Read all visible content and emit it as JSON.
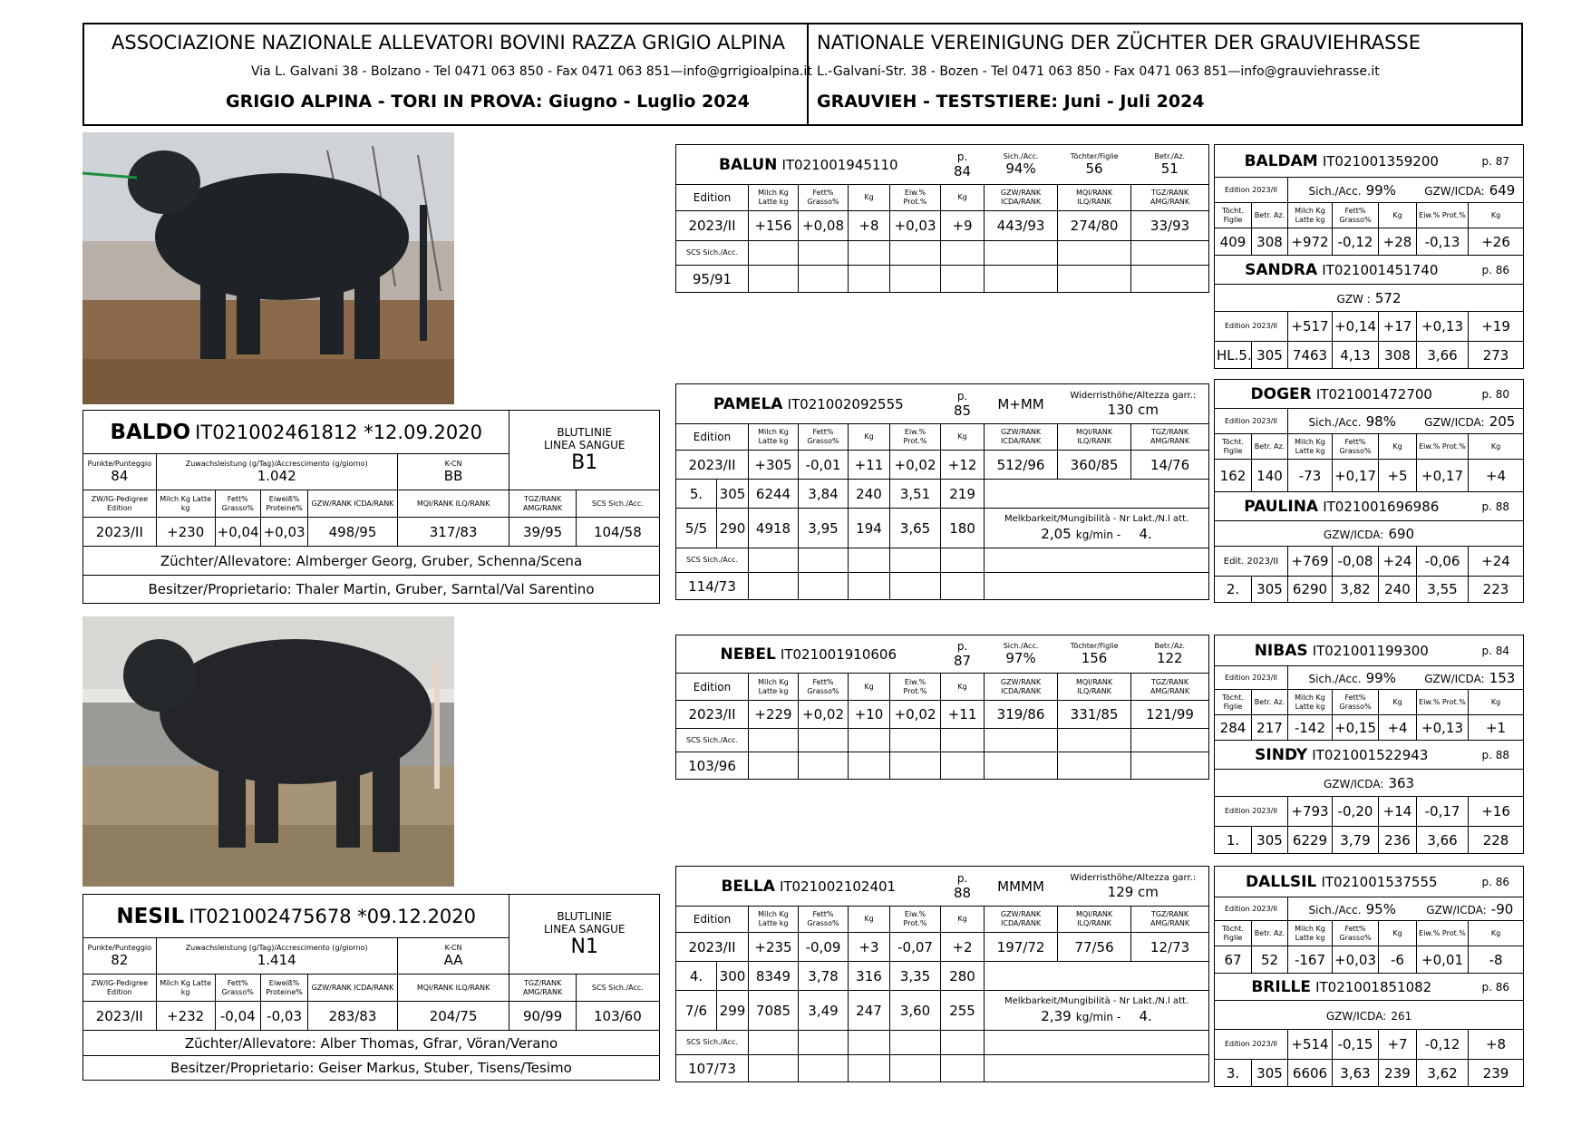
{
  "header": {
    "it_title": "ASSOCIAZIONE NAZIONALE ALLEVATORI BOVINI RAZZA GRIGIO ALPINA",
    "it_address": "Via L. Galvani 38 - Bolzano - Tel 0471 063 850 - Fax  0471 063 851—info@grrigioalpina.it",
    "it_subtitle": "GRIGIO ALPINA - TORI IN PROVA: Giugno - Luglio 2024",
    "de_title": "NATIONALE VEREINIGUNG DER ZÜCHTER DER GRAUVIEHRASSE",
    "de_address": "L.-Galvani-Str. 38 - Bozen - Tel 0471 063 850 - Fax  0471 063 851—info@grauviehrasse.it",
    "de_subtitle": "GRAUVIEH - TESTSTIERE:  Juni - Juli 2024"
  },
  "labels": {
    "bloodline": "BLUTLINIE\nLINEA SANGUE",
    "points": "Punkte/Punteggio",
    "growth": "Zuwachsleistung (g/Tag)/Accrescimento (g/giorno)",
    "kcn": "K-CN",
    "zw": "ZW/IG-Pedigree Edition",
    "milk": "Milch Kg Latte kg",
    "fat": "Fett% Grasso%",
    "protein": "Eiweiß% Proteine%",
    "prot_short": "Eiw.% Prot.%",
    "kg": "Kg",
    "gzw": "GZW/RANK ICDA/RANK",
    "mqi": "MQI/RANK ILQ/RANK",
    "tgz": "TGZ/RANK AMG/RANK",
    "scs": "SCS Sich./Acc.",
    "edition": "Edition",
    "p": "p.",
    "acc": "Sich./Acc.",
    "daughters": "Töchter/Figlie",
    "herds": "Betr./Az.",
    "toecht": "Töcht. Figlie",
    "betr": "Betr. Az.",
    "height": "Widerristhöhe/Altezza garr.:",
    "milkability": "Melkbarkeit/Mungibilità - Nr Lakt./N.l att."
  },
  "bulls": [
    {
      "name": "BALDO",
      "id": "IT021002461812 *12.09.2020",
      "points": "84",
      "growth": "1.042",
      "kcn": "BB",
      "bloodline": "B1",
      "edition": "2023/II",
      "milk": "+230",
      "fat": "+0,04",
      "protein": "+0,03",
      "gzw": "498/95",
      "mqi": "317/83",
      "tgz": "39/95",
      "scs": "104/58",
      "breeder": "Züchter/Allevatore: Almberger Georg, Gruber, Schenna/Scena",
      "owner": "Besitzer/Proprietario: Thaler Martin, Gruber, Sarntal/Val Sarentino"
    },
    {
      "name": "NESIL",
      "id": "IT021002475678 *09.12.2020",
      "points": "82",
      "growth": "1.414",
      "kcn": "AA",
      "bloodline": "N1",
      "edition": "2023/II",
      "milk": "+232",
      "fat": "-0,04",
      "protein": "-0,03",
      "gzw": "283/83",
      "mqi": "204/75",
      "tgz": "90/99",
      "scs": "103/60",
      "breeder": "Züchter/Allevatore: Alber Thomas, Gfrar, Vöran/Verano",
      "owner": "Besitzer/Proprietario:  Geiser Markus, Stuber, Tisens/Tesimo"
    }
  ],
  "sires": [
    {
      "name": "BALUN",
      "id": "IT021001945110",
      "p": "84",
      "acc": "94%",
      "daughters": "56",
      "herds": "51",
      "edition": "2023/II",
      "milk": "+156",
      "fat": "+0,08",
      "fatkg": "+8",
      "prot": "+0,03",
      "protkg": "+9",
      "gzw": "443/93",
      "mqi": "274/80",
      "tgz": "33/93",
      "scs": "95/91"
    },
    {
      "name": "NEBEL",
      "id": "IT021001910606",
      "p": "87",
      "acc": "97%",
      "daughters": "156",
      "herds": "122",
      "edition": "2023/II",
      "milk": "+229",
      "fat": "+0,02",
      "fatkg": "+10",
      "prot": "+0,02",
      "protkg": "+11",
      "gzw": "319/86",
      "mqi": "331/85",
      "tgz": "121/99",
      "scs": "103/96"
    }
  ],
  "dams": [
    {
      "name": "PAMELA",
      "id": "IT021002092555",
      "p": "85",
      "form": "M+MM",
      "height": "130 cm",
      "edition": "2023/II",
      "milk": "+305",
      "fat": "-0,01",
      "fatkg": "+11",
      "prot": "+0,02",
      "protkg": "+12",
      "gzw": "512/96",
      "mqi": "360/85",
      "tgz": "14/76",
      "l1": [
        "5.",
        "305",
        "6244",
        "3,84",
        "240",
        "3,51",
        "219"
      ],
      "l2": [
        "5/5",
        "290",
        "4918",
        "3,95",
        "194",
        "3,65",
        "180"
      ],
      "milkability": "2,05",
      "unit": "kg/min -",
      "lact": "4.",
      "scs": "114/73"
    },
    {
      "name": "BELLA",
      "id": "IT021002102401",
      "p": "88",
      "form": "MMMM",
      "height": "129 cm",
      "edition": "2023/II",
      "milk": "+235",
      "fat": "-0,09",
      "fatkg": "+3",
      "prot": "-0,07",
      "protkg": "+2",
      "gzw": "197/72",
      "mqi": "77/56",
      "tgz": "12/73",
      "l1": [
        "4.",
        "300",
        "8349",
        "3,78",
        "316",
        "3,35",
        "280"
      ],
      "l2": [
        "7/6",
        "299",
        "7085",
        "3,49",
        "247",
        "3,60",
        "255"
      ],
      "milkability": "2,39",
      "unit": "kg/min -",
      "lact": "4.",
      "scs": "107/73"
    }
  ],
  "grand": [
    {
      "sire": {
        "name": "BALDAM",
        "id": "IT021001359200",
        "p": "p. 87",
        "acc_label": "Sich./Acc.",
        "acc": "99%",
        "gzw_label": "GZW/ICDA:",
        "gzw": "649",
        "ed": "Edition 2023/II",
        "vals": [
          "409",
          "308",
          "+972",
          "-0,12",
          "+28",
          "-0,13",
          "+26"
        ]
      },
      "dam": {
        "name": "SANDRA",
        "id": "IT021001451740",
        "p": "p. 86",
        "gzw_label": "GZW :",
        "gzw": "572",
        "ed": "Edition 2023/II",
        "vals": [
          "+517",
          "+0,14",
          "+17",
          "+0,13",
          "+19"
        ],
        "lact": [
          "HL.5.",
          "305",
          "7463",
          "4,13",
          "308",
          "3,66",
          "273"
        ]
      }
    },
    {
      "sire": {
        "name": "DOGER",
        "id": "IT021001472700",
        "p": "p. 80",
        "acc_label": "Sich./Acc.",
        "acc": "98%",
        "gzw_label": "GZW/ICDA:",
        "gzw": "205",
        "ed": "Edition 2023/II",
        "vals": [
          "162",
          "140",
          "-73",
          "+0,17",
          "+5",
          "+0,17",
          "+4"
        ]
      },
      "dam": {
        "name": "PAULINA",
        "id": "IT021001696986",
        "p": "p. 88",
        "gzw_label": "GZW/ICDA:",
        "gzw": "690",
        "ed": "Edit. 2023/II",
        "vals": [
          "+769",
          "-0,08",
          "+24",
          "-0,06",
          "+24"
        ],
        "lact": [
          "2.",
          "305",
          "6290",
          "3,82",
          "240",
          "3,55",
          "223"
        ]
      }
    },
    {
      "sire": {
        "name": "NIBAS",
        "id": "IT021001199300",
        "p": "p. 84",
        "acc_label": "Sich./Acc.",
        "acc": "99%",
        "gzw_label": "GZW/ICDA:",
        "gzw": "153",
        "ed": "Edition 2023/II",
        "vals": [
          "284",
          "217",
          "-142",
          "+0,15",
          "+4",
          "+0,13",
          "+1"
        ]
      },
      "dam": {
        "name": "SINDY",
        "id": "IT021001522943",
        "p": "p. 88",
        "gzw_label": "GZW/ICDA:",
        "gzw": "363",
        "ed": "Edition 2023/II",
        "vals": [
          "+793",
          "-0,20",
          "+14",
          "-0,17",
          "+16"
        ],
        "lact": [
          "1.",
          "305",
          "6229",
          "3,79",
          "236",
          "3,66",
          "228"
        ]
      }
    },
    {
      "sire": {
        "name": "DALLSIL",
        "id": "IT021001537555",
        "p": "p. 86",
        "acc_label": "Sich./Acc.",
        "acc": "95%",
        "gzw_label": "GZW/ICDA:",
        "gzw": "-90",
        "ed": "Edition 2023/II",
        "vals": [
          "67",
          "52",
          "-167",
          "+0,03",
          "-6",
          "+0,01",
          "-8"
        ]
      },
      "dam": {
        "name": "BRILLE",
        "id": "IT021001851082",
        "p": "p. 86",
        "gzw_label": "GZW/ICDA:",
        "gzw": "261",
        "ed": "Edition 2023/II",
        "vals": [
          "+514",
          "-0,15",
          "+7",
          "-0,12",
          "+8"
        ],
        "lact": [
          "3.",
          "305",
          "6606",
          "3,63",
          "239",
          "3,62",
          "239"
        ]
      }
    }
  ]
}
